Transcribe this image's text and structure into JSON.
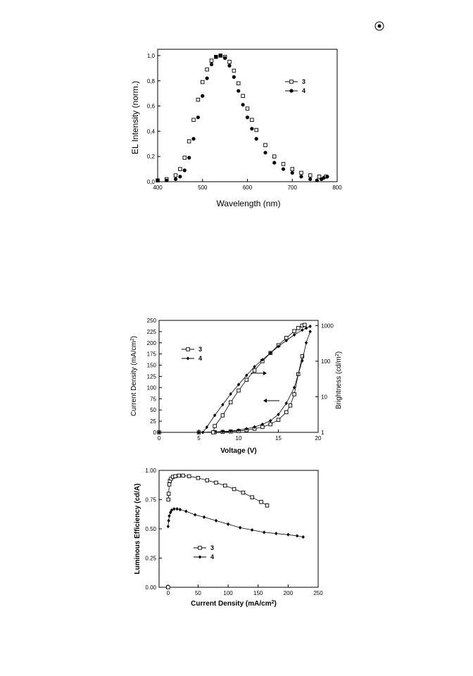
{
  "page": {
    "marker_icon": "circle-dot-icon"
  },
  "chart_data": [
    {
      "id": "el-spectrum",
      "type": "scatter",
      "xlabel": "Wavelength (nm)",
      "ylabel": "EL Intensity (norm.)",
      "xlim": [
        400,
        800
      ],
      "ylim": [
        0,
        1.05
      ],
      "xticks": [
        400,
        500,
        600,
        700,
        800
      ],
      "xtick_labels": [
        "400",
        "500",
        "600",
        "700",
        "800"
      ],
      "yticks": [
        0,
        0.2,
        0.4,
        0.6,
        0.8,
        1.0
      ],
      "ytick_labels": [
        "0,0",
        "0,2",
        "0,4",
        "0,6",
        "0,8",
        "1,0"
      ],
      "legend_position": "upper-right",
      "series": [
        {
          "name": "3",
          "marker": "open-square",
          "x": [
            400,
            420,
            440,
            450,
            460,
            470,
            480,
            490,
            500,
            510,
            520,
            530,
            540,
            550,
            560,
            570,
            580,
            590,
            600,
            610,
            620,
            640,
            660,
            680,
            700,
            720,
            740,
            760,
            775
          ],
          "y": [
            0.01,
            0.02,
            0.05,
            0.1,
            0.19,
            0.32,
            0.49,
            0.65,
            0.79,
            0.89,
            0.96,
            0.99,
            1.0,
            0.99,
            0.95,
            0.88,
            0.78,
            0.68,
            0.58,
            0.49,
            0.41,
            0.29,
            0.2,
            0.14,
            0.1,
            0.07,
            0.05,
            0.04,
            0.04
          ]
        },
        {
          "name": "4",
          "marker": "filled-circle",
          "x": [
            400,
            420,
            440,
            450,
            460,
            470,
            480,
            490,
            500,
            510,
            520,
            530,
            540,
            550,
            560,
            570,
            580,
            590,
            600,
            610,
            620,
            640,
            660,
            680,
            700,
            720,
            740,
            755,
            765,
            770,
            778
          ],
          "y": [
            0.01,
            0.01,
            0.02,
            0.04,
            0.09,
            0.19,
            0.34,
            0.51,
            0.68,
            0.82,
            0.93,
            0.99,
            1.0,
            0.98,
            0.92,
            0.83,
            0.72,
            0.61,
            0.51,
            0.42,
            0.34,
            0.23,
            0.15,
            0.1,
            0.07,
            0.04,
            0.02,
            0.01,
            0.02,
            0.03,
            0.04
          ]
        }
      ]
    },
    {
      "id": "jvl",
      "type": "scatter",
      "xlabel": "Voltage (V)",
      "ylabel": "Current Density (mA/cm2)",
      "ylabel_parts": [
        "Current Density (mA/cm",
        "2",
        ")"
      ],
      "y2label": "Brightness (cd/m2)",
      "y2label_parts": [
        "Brightness (cd/m",
        "2",
        ")"
      ],
      "xlim": [
        0,
        20
      ],
      "ylim": [
        0,
        250
      ],
      "y2lim": [
        1,
        1400
      ],
      "y2_scale": "log",
      "xticks": [
        0,
        5,
        10,
        15,
        20
      ],
      "xtick_labels": [
        "0",
        "5",
        "10",
        "15",
        "20"
      ],
      "yticks": [
        0,
        25,
        50,
        75,
        100,
        125,
        150,
        175,
        200,
        225,
        250
      ],
      "ytick_labels": [
        "0",
        "25",
        "50",
        "75",
        "100",
        "125",
        "150",
        "175",
        "200",
        "225",
        "250"
      ],
      "y2ticks": [
        1,
        10,
        100,
        1000
      ],
      "y2tick_labels": [
        "1",
        "10",
        "100",
        "1000"
      ],
      "legend_position": "upper-left",
      "annotations": [
        "arrow pointing right (brightness curves)",
        "arrow pointing left (current density curves)"
      ],
      "series": [
        {
          "name": "3",
          "axis": "left",
          "marker": "open-square",
          "x": [
            0,
            5,
            7,
            8,
            9,
            10,
            11,
            12,
            13,
            14,
            15,
            16,
            16.5,
            17,
            17.5,
            18
          ],
          "y": [
            0,
            0,
            0.5,
            1,
            2,
            3,
            5,
            8,
            12,
            18,
            28,
            45,
            60,
            85,
            130,
            170
          ]
        },
        {
          "name": "4",
          "axis": "left",
          "marker": "filled-diamond",
          "x": [
            0,
            5,
            7,
            8,
            9,
            10,
            11,
            12,
            13,
            14,
            15,
            16,
            17,
            18,
            18.5,
            19
          ],
          "y": [
            0,
            0,
            1,
            2,
            3,
            5,
            8,
            12,
            18,
            26,
            40,
            65,
            100,
            160,
            200,
            225
          ]
        },
        {
          "name": "3",
          "axis": "right",
          "marker": "open-square",
          "x": [
            6.8,
            7,
            8,
            9,
            10,
            11,
            12,
            13,
            14,
            15,
            16,
            17,
            17.5,
            18,
            18.3
          ],
          "y": [
            1,
            1.5,
            3,
            7,
            15,
            30,
            55,
            100,
            170,
            280,
            450,
            700,
            850,
            1000,
            1050
          ]
        },
        {
          "name": "4",
          "axis": "right",
          "marker": "filled-diamond",
          "x": [
            5.5,
            6,
            7,
            8,
            9,
            10,
            11,
            12,
            13,
            14,
            15,
            16,
            17,
            18,
            18.5,
            19
          ],
          "y": [
            1,
            1.4,
            3,
            6,
            12,
            22,
            40,
            70,
            110,
            170,
            260,
            380,
            550,
            750,
            850,
            950
          ]
        }
      ]
    },
    {
      "id": "efficiency",
      "type": "scatter",
      "xlabel": "Current Density (mA/cm2)",
      "xlabel_parts": [
        "Current Density (mA/cm",
        "2",
        ")"
      ],
      "ylabel": "Luminous Efficiency (cd/A)",
      "xlim": [
        -15,
        250
      ],
      "ylim": [
        0,
        1.0
      ],
      "xticks": [
        0,
        50,
        100,
        150,
        200,
        250
      ],
      "xtick_labels": [
        "0",
        "50",
        "100",
        "150",
        "200",
        "250"
      ],
      "yticks": [
        0,
        0.25,
        0.5,
        0.75,
        1.0
      ],
      "ytick_labels": [
        "0.00",
        "0.25",
        "0.50",
        "0.75",
        "1.00"
      ],
      "legend_position": "lower-left",
      "series": [
        {
          "name": "3",
          "marker": "open-square",
          "x": [
            0,
            0.5,
            1,
            2,
            3,
            5,
            8,
            12,
            18,
            25,
            35,
            50,
            65,
            80,
            95,
            110,
            125,
            140,
            155,
            165
          ],
          "y": [
            0.0,
            0.75,
            0.8,
            0.88,
            0.91,
            0.93,
            0.945,
            0.95,
            0.955,
            0.955,
            0.95,
            0.935,
            0.915,
            0.895,
            0.87,
            0.84,
            0.81,
            0.77,
            0.73,
            0.7
          ]
        },
        {
          "name": "4",
          "marker": "filled-diamond",
          "x": [
            0,
            1,
            2,
            4,
            6,
            10,
            15,
            20,
            30,
            45,
            60,
            80,
            100,
            120,
            140,
            160,
            180,
            200,
            215,
            225
          ],
          "y": [
            0.52,
            0.57,
            0.61,
            0.64,
            0.66,
            0.67,
            0.67,
            0.665,
            0.65,
            0.62,
            0.6,
            0.57,
            0.54,
            0.51,
            0.49,
            0.47,
            0.46,
            0.45,
            0.44,
            0.43
          ]
        }
      ]
    }
  ]
}
